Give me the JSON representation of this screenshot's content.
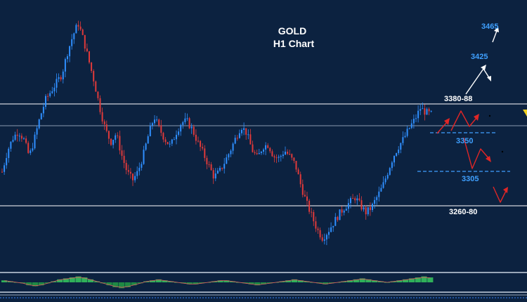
{
  "chart_data": {
    "type": "candlestick",
    "title": "GOLD",
    "subtitle": "H1 Chart",
    "levels": [
      {
        "label": "3465",
        "value": 3465
      },
      {
        "label": "3425",
        "value": 3425
      },
      {
        "label": "3380-88",
        "value": 3384
      },
      {
        "label": "3350",
        "value": 3350
      },
      {
        "label": "3305",
        "value": 3305
      },
      {
        "label": "3260-80",
        "value": 3270
      }
    ],
    "price_path": [
      3300,
      3325,
      3340,
      3348,
      3338,
      3318,
      3340,
      3365,
      3385,
      3395,
      3405,
      3415,
      3440,
      3460,
      3475,
      3455,
      3430,
      3405,
      3375,
      3350,
      3335,
      3345,
      3320,
      3300,
      3290,
      3300,
      3320,
      3345,
      3365,
      3350,
      3338,
      3330,
      3346,
      3358,
      3360,
      3350,
      3335,
      3322,
      3308,
      3294,
      3300,
      3312,
      3325,
      3340,
      3354,
      3346,
      3326,
      3316,
      3330,
      3332,
      3318,
      3316,
      3325,
      3318,
      3308,
      3284,
      3264,
      3248,
      3232,
      3222,
      3230,
      3240,
      3250,
      3258,
      3264,
      3270,
      3260,
      3252,
      3258,
      3270,
      3282,
      3300,
      3318,
      3330,
      3340,
      3352,
      3362,
      3375,
      3370,
      3368
    ],
    "colors": {
      "up": "#2f8fff",
      "down": "#e03a3a",
      "background": "#0c2240",
      "level_line": "#ffffff",
      "dashed": "#3fa0ff"
    },
    "oscillator": [
      2,
      1,
      0,
      -1,
      -3,
      -4,
      -3,
      -1,
      1,
      3,
      4,
      5,
      6,
      5,
      3,
      1,
      -1,
      -3,
      -5,
      -6,
      -5,
      -3,
      -1,
      1,
      2,
      3,
      2,
      1,
      0,
      -1,
      -2,
      -2,
      -1,
      0,
      1,
      2,
      2,
      1,
      0,
      -1,
      -2,
      -3,
      -2,
      -1,
      0,
      1,
      2,
      3,
      2,
      1,
      0,
      -1,
      -2,
      -1,
      0,
      1,
      2,
      3,
      4,
      3,
      2,
      1,
      0,
      1,
      2,
      3,
      4,
      5,
      6,
      5
    ]
  }
}
